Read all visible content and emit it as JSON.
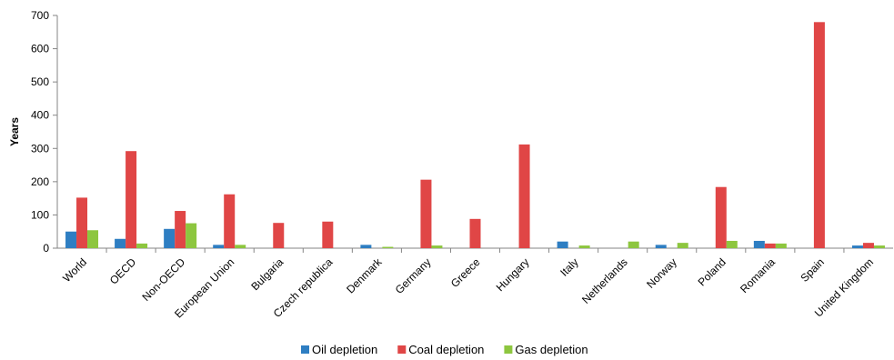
{
  "chart_data": {
    "type": "bar",
    "ylabel": "Years",
    "xlabel": "",
    "title": "",
    "ylim": [
      0,
      700
    ],
    "yticks": [
      0,
      100,
      200,
      300,
      400,
      500,
      600,
      700
    ],
    "grid": false,
    "legend_position": "bottom",
    "categories": [
      "World",
      "OECD",
      "Non-OECD",
      "European Union",
      "Bulgaria",
      "Czech republica",
      "Denmark",
      "Germany",
      "Greece",
      "Hungary",
      "Italy",
      "Netherlands",
      "Norway",
      "Poland",
      "Romania",
      "Spain",
      "United Kingdom"
    ],
    "series": [
      {
        "name": "Oil depletion",
        "color": "#2E7EC2",
        "values": [
          50,
          28,
          58,
          10,
          0,
          0,
          10,
          0,
          0,
          0,
          20,
          0,
          10,
          0,
          22,
          0,
          8
        ]
      },
      {
        "name": "Coal depletion",
        "color": "#E04646",
        "values": [
          152,
          292,
          112,
          162,
          76,
          80,
          0,
          206,
          88,
          312,
          0,
          0,
          0,
          184,
          14,
          680,
          16
        ]
      },
      {
        "name": "Gas depletion",
        "color": "#8DC63F",
        "values": [
          54,
          14,
          75,
          10,
          0,
          0,
          4,
          8,
          0,
          0,
          8,
          20,
          16,
          22,
          14,
          0,
          8
        ]
      }
    ]
  }
}
